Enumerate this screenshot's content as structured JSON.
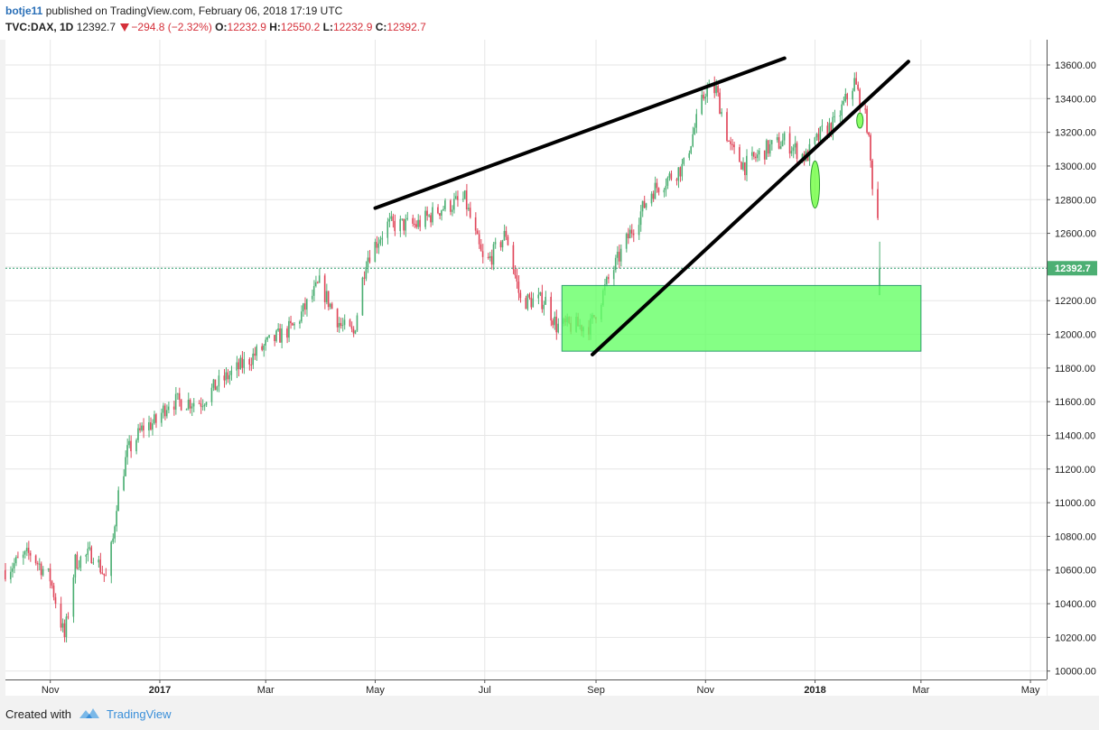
{
  "header": {
    "author": "botje11",
    "published_text": "published on TradingView.com, February 06, 2018 17:19 UTC",
    "symbol": "TVC:DAX, 1D",
    "last": "12392.7",
    "change": "−294.8 (−2.32%)",
    "o_label": "O:",
    "o_value": "12232.9",
    "h_label": "H:",
    "h_value": "12550.2",
    "l_label": "L:",
    "l_value": "12232.9",
    "c_label": "C:",
    "c_value": "12392.7"
  },
  "footer": {
    "created_with": "Created with",
    "brand": "TradingView"
  },
  "colors": {
    "up": "#4caf73",
    "down": "#e0465a",
    "grid": "#e6e6e6",
    "price_line": "#2e9e6e",
    "zone_fill": "#66ff66"
  },
  "chart_data": {
    "type": "candlestick",
    "symbol": "TVC:DAX",
    "interval": "1D",
    "last_price": 12392.7,
    "last_price_label": "12392.7",
    "ylim": [
      9950,
      13750
    ],
    "y_ticks": [
      10000,
      10200,
      10400,
      10600,
      10800,
      11000,
      11200,
      11400,
      11600,
      11800,
      12000,
      12200,
      12400,
      12600,
      12800,
      13000,
      13200,
      13400,
      13600
    ],
    "x_ticks": [
      {
        "label": "Nov",
        "date": "2016-11-01",
        "bold": false
      },
      {
        "label": "2017",
        "date": "2017-01-01",
        "bold": true
      },
      {
        "label": "Mar",
        "date": "2017-03-01",
        "bold": false
      },
      {
        "label": "May",
        "date": "2017-05-01",
        "bold": false
      },
      {
        "label": "Jul",
        "date": "2017-07-01",
        "bold": false
      },
      {
        "label": "Sep",
        "date": "2017-09-01",
        "bold": false
      },
      {
        "label": "Nov",
        "date": "2017-11-01",
        "bold": false
      },
      {
        "label": "2018",
        "date": "2018-01-01",
        "bold": true
      },
      {
        "label": "Mar",
        "date": "2018-03-01",
        "bold": false
      },
      {
        "label": "May",
        "date": "2018-05-01",
        "bold": false
      }
    ],
    "x_range": [
      "2016-10-07",
      "2018-05-10"
    ],
    "path": [
      [
        "2016-10-07",
        10600
      ],
      [
        "2016-10-21",
        10700
      ],
      [
        "2016-11-01",
        10550
      ],
      [
        "2016-11-09",
        10200
      ],
      [
        "2016-11-15",
        10650
      ],
      [
        "2016-11-25",
        10700
      ],
      [
        "2016-12-02",
        10550
      ],
      [
        "2016-12-06",
        10780
      ],
      [
        "2016-12-08",
        11000
      ],
      [
        "2016-12-14",
        11300
      ],
      [
        "2016-12-23",
        11450
      ],
      [
        "2016-12-30",
        11480
      ],
      [
        "2017-01-06",
        11600
      ],
      [
        "2017-01-24",
        11600
      ],
      [
        "2017-02-02",
        11700
      ],
      [
        "2017-02-14",
        11800
      ],
      [
        "2017-03-03",
        11950
      ],
      [
        "2017-03-17",
        12050
      ],
      [
        "2017-03-31",
        12300
      ],
      [
        "2017-04-12",
        12050
      ],
      [
        "2017-04-19",
        12000
      ],
      [
        "2017-04-26",
        12450
      ],
      [
        "2017-05-08",
        12650
      ],
      [
        "2017-05-24",
        12650
      ],
      [
        "2017-06-07",
        12750
      ],
      [
        "2017-06-20",
        12800
      ],
      [
        "2017-07-01",
        12400
      ],
      [
        "2017-07-13",
        12600
      ],
      [
        "2017-07-21",
        12200
      ],
      [
        "2017-08-04",
        12200
      ],
      [
        "2017-08-10",
        12050
      ],
      [
        "2017-08-29",
        12050
      ],
      [
        "2017-09-07",
        12300
      ],
      [
        "2017-09-20",
        12600
      ],
      [
        "2017-10-02",
        12850
      ],
      [
        "2017-10-20",
        13000
      ],
      [
        "2017-11-01",
        13450
      ],
      [
        "2017-11-07",
        13450
      ],
      [
        "2017-11-15",
        13100
      ],
      [
        "2017-11-23",
        13000
      ],
      [
        "2017-12-05",
        13100
      ],
      [
        "2017-12-15",
        13150
      ],
      [
        "2017-12-27",
        13050
      ],
      [
        "2018-01-05",
        13200
      ],
      [
        "2018-01-12",
        13250
      ],
      [
        "2018-01-23",
        13500
      ],
      [
        "2018-01-30",
        13250
      ],
      [
        "2018-02-02",
        12900
      ],
      [
        "2018-02-05",
        12700
      ],
      [
        "2018-02-06",
        12392.7
      ]
    ],
    "annotations": [
      {
        "type": "trendline",
        "from": [
          "2017-05-01",
          12750
        ],
        "to": [
          "2017-12-15",
          13640
        ]
      },
      {
        "type": "trendline",
        "from": [
          "2017-08-30",
          11880
        ],
        "to": [
          "2018-02-22",
          13620
        ]
      },
      {
        "type": "rectangle",
        "from": [
          "2017-08-13",
          12290
        ],
        "to": [
          "2018-03-01",
          11900
        ]
      },
      {
        "type": "ellipse",
        "center": [
          "2018-01-01",
          12890
        ],
        "rx_days": 2.5,
        "ry": 140
      },
      {
        "type": "ellipse",
        "center": [
          "2018-01-26",
          13270
        ],
        "rx_days": 1.8,
        "ry": 45
      }
    ]
  }
}
